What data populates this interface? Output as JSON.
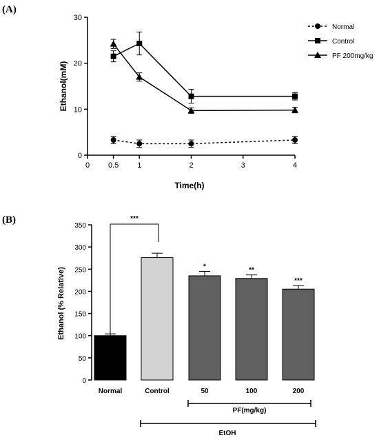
{
  "panels": {
    "a_label": "(A)",
    "b_label": "(B)"
  },
  "chart_data": [
    {
      "type": "line",
      "xlabel": "Time(h)",
      "ylabel": "Ethanol(mM)",
      "xlim": [
        0,
        4
      ],
      "ylim": [
        0,
        30
      ],
      "xticks": [
        "0",
        "0.5",
        "1",
        "2",
        "3",
        "4"
      ],
      "yticks": [
        "0",
        "10",
        "20",
        "30"
      ],
      "legend_position": "top-right",
      "grid": false,
      "series": [
        {
          "name": "Normal",
          "marker": "circle",
          "line": "dotted",
          "x": [
            0.5,
            1,
            2,
            4
          ],
          "y": [
            3.3,
            2.5,
            2.5,
            3.3
          ],
          "err": [
            0.8,
            0.8,
            0.8,
            0.8
          ]
        },
        {
          "name": "Control",
          "marker": "square",
          "line": "solid",
          "x": [
            0.5,
            1,
            2,
            4
          ],
          "y": [
            21.5,
            24.3,
            12.8,
            12.8
          ],
          "err": [
            1.2,
            2.5,
            1.5,
            0.8
          ]
        },
        {
          "name": "PF 200mg/kg",
          "marker": "triangle",
          "line": "solid",
          "x": [
            0.5,
            1,
            2,
            4
          ],
          "y": [
            24.2,
            17.0,
            9.7,
            9.8
          ],
          "err": [
            1.0,
            0.9,
            0.6,
            0.6
          ]
        }
      ]
    },
    {
      "type": "bar",
      "ylabel": "Ethanol (% Relative)",
      "ylim": [
        0,
        350
      ],
      "yticks": [
        "0",
        "50",
        "100",
        "150",
        "200",
        "250",
        "300",
        "350"
      ],
      "categories": [
        "Normal",
        "Control",
        "50",
        "100",
        "200"
      ],
      "values": [
        100,
        276,
        235,
        229,
        205
      ],
      "errors": [
        4,
        10,
        10,
        8,
        8
      ],
      "colors": [
        "#000000",
        "#d3d3d3",
        "#606060",
        "#606060",
        "#606060"
      ],
      "significance": [
        "",
        "",
        "*",
        "**",
        "***"
      ],
      "bracket_label": "***",
      "group_label": "PF(mg/kg)",
      "treatment_label": "EtOH"
    }
  ]
}
